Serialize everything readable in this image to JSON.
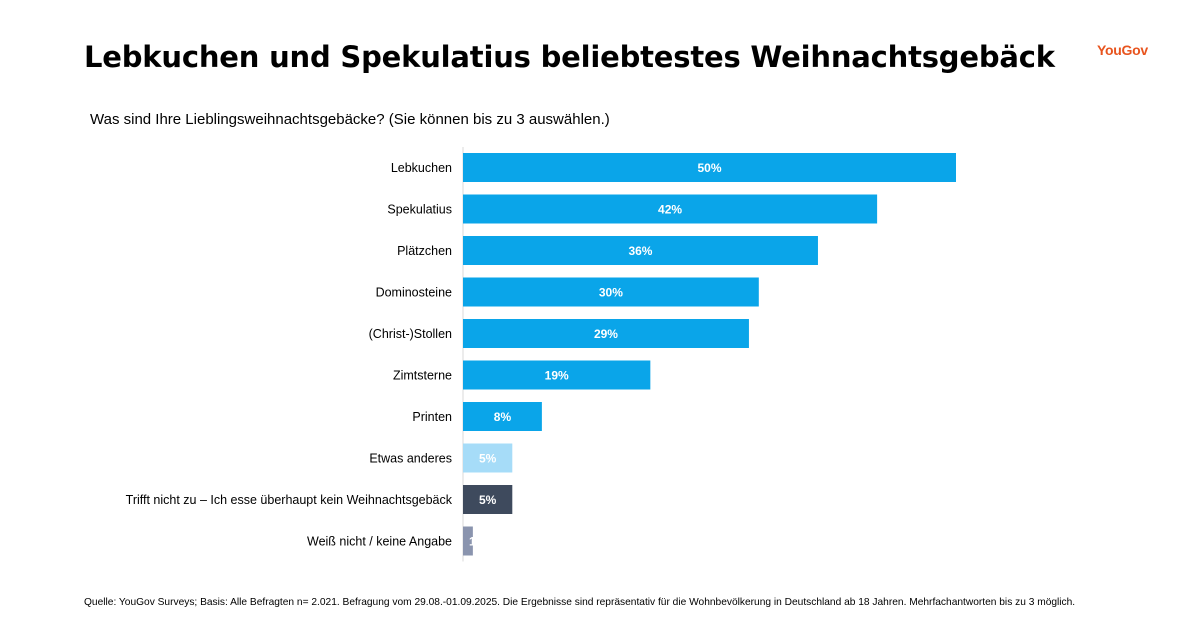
{
  "header": {
    "title": "Lebkuchen und Spekulatius beliebtestes Weihnachtsgebäck",
    "logo": "YouGov"
  },
  "chart_data": {
    "type": "bar",
    "orientation": "horizontal",
    "subtitle": "Was sind Ihre Lieblingsweihnachtsgebäcke? (Sie können bis zu 3 auswählen.)",
    "categories": [
      "Lebkuchen",
      "Spekulatius",
      "Plätzchen",
      "Dominosteine",
      "(Christ-)Stollen",
      "Zimtsterne",
      "Printen",
      "Etwas anderes",
      "Trifft nicht zu – Ich esse überhaupt kein Weihnachtsgebäck",
      "Weiß nicht / keine Angabe"
    ],
    "values": [
      50,
      42,
      36,
      30,
      29,
      19,
      8,
      5,
      5,
      1
    ],
    "labels": [
      "50%",
      "42%",
      "36%",
      "30%",
      "29%",
      "19%",
      "8%",
      "5%",
      "5%",
      "1"
    ],
    "colors": [
      "#0aa5e9",
      "#0aa5e9",
      "#0aa5e9",
      "#0aa5e9",
      "#0aa5e9",
      "#0aa5e9",
      "#0aa5e9",
      "#a6dcf8",
      "#3e4a5d",
      "#8a94ae"
    ],
    "xlim": [
      0,
      50
    ],
    "unit": "%"
  },
  "footer": {
    "source": "Quelle: YouGov Surveys; Basis: Alle Befragten n= 2.021. Befragung vom 29.08.-01.09.2025. Die Ergebnisse sind repräsentativ für die Wohnbevölkerung in Deutschland ab 18 Jahren. Mehrfachantworten bis zu 3 möglich."
  }
}
